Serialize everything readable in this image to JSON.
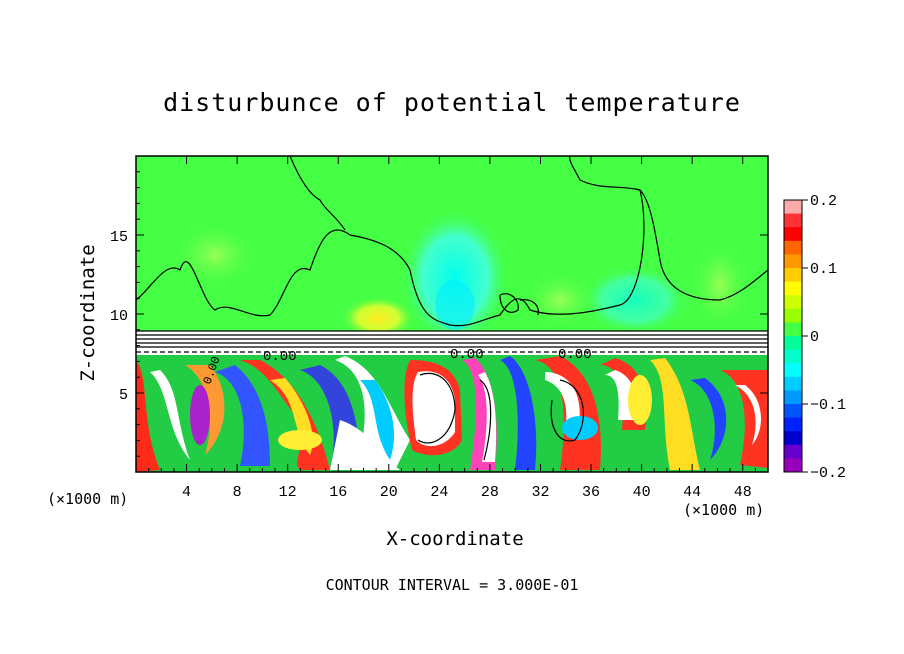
{
  "chart_data": {
    "type": "heatmap",
    "title": "disturbunce of potential temperature",
    "xlabel": "X-coordinate",
    "ylabel": "Z-coordinate",
    "x_unit_left": "(×1000 m)",
    "x_unit_right": "(×1000 m)",
    "xlim": [
      0,
      50
    ],
    "ylim": [
      0,
      20
    ],
    "x_ticks": [
      "4",
      "8",
      "12",
      "16",
      "20",
      "24",
      "28",
      "32",
      "36",
      "40",
      "44",
      "48"
    ],
    "y_ticks": [
      "5",
      "10",
      "15"
    ],
    "colorbar": {
      "range": [
        -0.2,
        0.2
      ],
      "tick_labels": [
        "0.2",
        "0.1",
        "0",
        "−0.1",
        "−0.2"
      ],
      "tick_values": [
        0.2,
        0.1,
        0,
        -0.1,
        -0.2
      ]
    },
    "contour_labels": [
      "0.00",
      "0.00",
      "0.00",
      "0.00"
    ],
    "annotation": "CONTOUR INTERVAL = 3.000E-01",
    "grid": false
  }
}
